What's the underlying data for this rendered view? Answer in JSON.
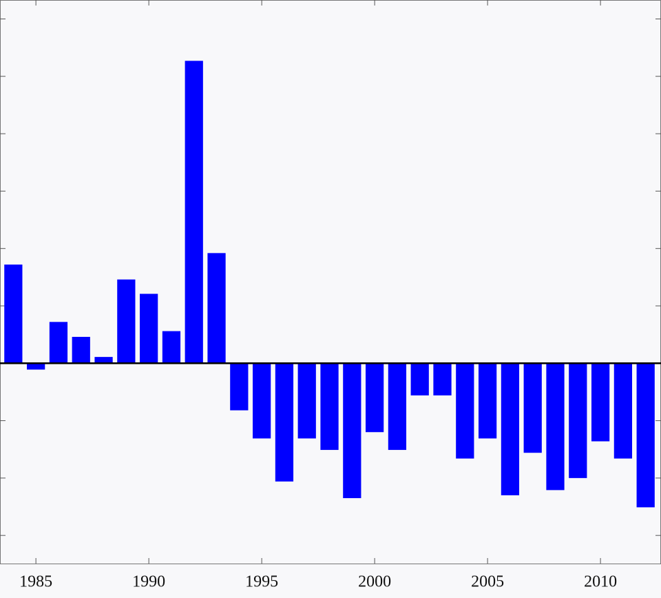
{
  "chart_data": {
    "type": "bar",
    "x": [
      1984,
      1985,
      1986,
      1987,
      1988,
      1989,
      1990,
      1991,
      1992,
      1993,
      1994,
      1995,
      1996,
      1997,
      1998,
      1999,
      2000,
      2001,
      2002,
      2003,
      2004,
      2005,
      2006,
      2007,
      2008,
      2009,
      2010,
      2011,
      2012
    ],
    "values": [
      1.72,
      -0.11,
      0.72,
      0.46,
      0.11,
      1.46,
      1.21,
      0.56,
      5.27,
      1.92,
      -0.82,
      -1.31,
      -2.06,
      -1.31,
      -1.51,
      -2.35,
      -1.2,
      -1.51,
      -0.56,
      -0.56,
      -1.66,
      -1.31,
      -2.3,
      -1.56,
      -2.21,
      -2.0,
      -1.36,
      -1.66,
      -2.51
    ],
    "color": "#0000ff",
    "xlim": [
      1983.41,
      2012.68
    ],
    "xticks": [
      1985,
      1990,
      1995,
      2000,
      2005,
      2010
    ],
    "ylim": [
      -3.49,
      6.33
    ],
    "yticks": [
      -3,
      -2,
      -1,
      0,
      1,
      2,
      3,
      4,
      5,
      6
    ],
    "grid": false
  }
}
